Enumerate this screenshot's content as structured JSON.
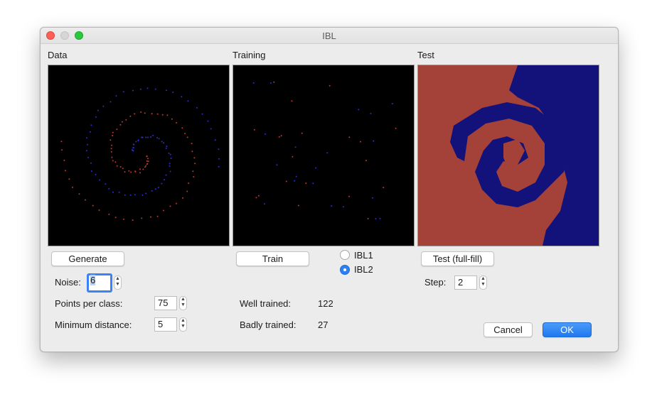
{
  "window": {
    "title": "IBL"
  },
  "panels": {
    "data": "Data",
    "training": "Training",
    "test": "Test"
  },
  "buttons": {
    "generate": "Generate",
    "train": "Train",
    "test": "Test (full-fill)",
    "cancel": "Cancel",
    "ok": "OK"
  },
  "fields": {
    "noise": {
      "label": "Noise:",
      "value": "6"
    },
    "points_per_class": {
      "label": "Points per class:",
      "value": "75"
    },
    "minimum_distance": {
      "label": "Minimum distance:",
      "value": "5"
    },
    "step": {
      "label": "Step:",
      "value": "2"
    }
  },
  "algorithm": {
    "options": [
      "IBL1",
      "IBL2"
    ],
    "selected": "IBL2"
  },
  "stats": {
    "well_trained": {
      "label": "Well trained:",
      "value": "122"
    },
    "badly_trained": {
      "label": "Badly trained:",
      "value": "27"
    }
  },
  "colors": {
    "class_a": "#c0392b",
    "class_b": "#2d2dd6",
    "test_a": "#a4423a",
    "test_b": "#12127a"
  }
}
